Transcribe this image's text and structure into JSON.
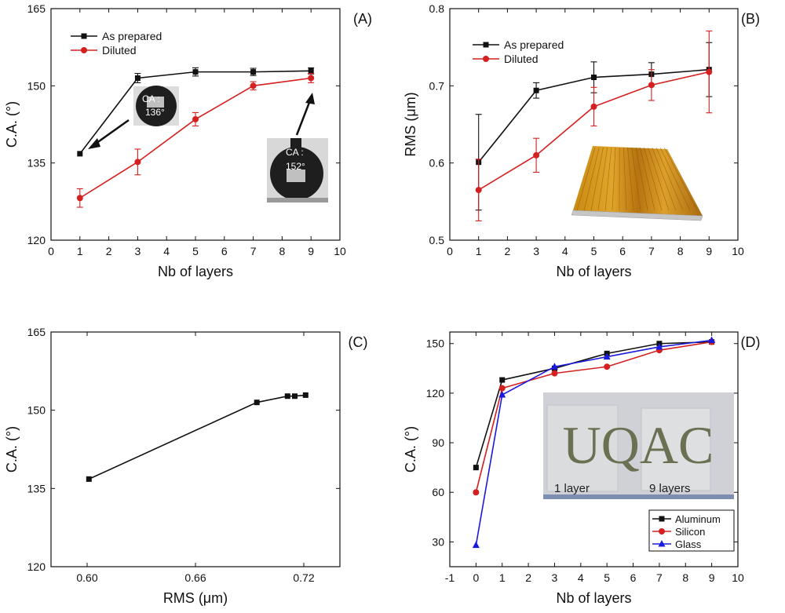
{
  "chart_data": [
    {
      "id": "A",
      "panel_label": "(A)",
      "type": "line",
      "xlabel": "Nb of layers",
      "ylabel": "C.A. (°)",
      "xlim": [
        0,
        10
      ],
      "ylim": [
        120,
        165
      ],
      "xticks": [
        "0",
        "1",
        "2",
        "3",
        "4",
        "5",
        "6",
        "7",
        "8",
        "9",
        "10"
      ],
      "yticks": [
        "120",
        "135",
        "150",
        "165"
      ],
      "series": [
        {
          "name": "As prepared",
          "color": "#111111",
          "marker": "square",
          "x": [
            1,
            3,
            5,
            7,
            9
          ],
          "y": [
            136.8,
            151.5,
            152.7,
            152.7,
            152.9
          ],
          "err": [
            0,
            0.9,
            0.8,
            0.7,
            0.6
          ]
        },
        {
          "name": "Diluted",
          "color": "#d42020",
          "marker": "circle",
          "x": [
            1,
            3,
            5,
            7,
            9
          ],
          "y": [
            128.2,
            135.2,
            143.5,
            150,
            151.5
          ],
          "err": [
            1.8,
            2.5,
            1.3,
            0.8,
            0.9
          ]
        }
      ],
      "legend": "top-left",
      "insets": [
        {
          "name": "droplet-136",
          "label": "CA :",
          "value": "136°"
        },
        {
          "name": "droplet-152",
          "label": "CA :",
          "value": "152°"
        }
      ]
    },
    {
      "id": "B",
      "panel_label": "(B)",
      "type": "line",
      "xlabel": "Nb of layers",
      "ylabel": "RMS (μm)",
      "xlim": [
        0,
        10
      ],
      "ylim": [
        0.5,
        0.8
      ],
      "xticks": [
        "0",
        "1",
        "2",
        "3",
        "4",
        "5",
        "6",
        "7",
        "8",
        "9",
        "10"
      ],
      "yticks": [
        "0.5",
        "0.6",
        "0.7",
        "0.8"
      ],
      "series": [
        {
          "name": "As prepared",
          "color": "#111111",
          "marker": "square",
          "x": [
            1,
            3,
            5,
            7,
            9
          ],
          "y": [
            0.601,
            0.694,
            0.711,
            0.715,
            0.721
          ],
          "err": [
            0.062,
            0.01,
            0.02,
            0.015,
            0.035
          ]
        },
        {
          "name": "Diluted",
          "color": "#d42020",
          "marker": "circle",
          "x": [
            1,
            3,
            5,
            7,
            9
          ],
          "y": [
            0.565,
            0.61,
            0.673,
            0.701,
            0.718
          ],
          "err": [
            0.04,
            0.022,
            0.025,
            0.02,
            0.053
          ]
        }
      ],
      "legend": "top-left",
      "insets": [
        {
          "name": "afm-surface-image"
        }
      ]
    },
    {
      "id": "C",
      "panel_label": "(C)",
      "type": "line",
      "xlabel": "RMS (μm)",
      "ylabel": "C.A. (°)",
      "xlim": [
        0.58,
        0.74
      ],
      "ylim": [
        120,
        165
      ],
      "xticks": [
        "0.60",
        "0.66",
        "0.72"
      ],
      "yticks": [
        "120",
        "135",
        "150",
        "165"
      ],
      "series": [
        {
          "name": "As prepared",
          "color": "#111111",
          "marker": "square",
          "x": [
            0.601,
            0.694,
            0.711,
            0.715,
            0.721
          ],
          "y": [
            136.8,
            151.5,
            152.7,
            152.7,
            152.9
          ]
        }
      ]
    },
    {
      "id": "D",
      "panel_label": "(D)",
      "type": "line",
      "xlabel": "Nb of layers",
      "ylabel": "C.A. (°)",
      "xlim": [
        -1,
        10
      ],
      "ylim": [
        15,
        157
      ],
      "xticks": [
        "-1",
        "0",
        "1",
        "2",
        "3",
        "4",
        "5",
        "6",
        "7",
        "8",
        "9",
        "10"
      ],
      "yticks": [
        "30",
        "60",
        "90",
        "120",
        "150"
      ],
      "series": [
        {
          "name": "Aluminum",
          "color": "#111111",
          "marker": "square",
          "x": [
            0,
            1,
            3,
            5,
            7,
            9
          ],
          "y": [
            75,
            128,
            135,
            144,
            150,
            151
          ]
        },
        {
          "name": "Silicon",
          "color": "#d42020",
          "marker": "circle",
          "x": [
            0,
            1,
            3,
            5,
            7,
            9
          ],
          "y": [
            60,
            123,
            132,
            136,
            146,
            151
          ]
        },
        {
          "name": "Glass",
          "color": "#1a1adc",
          "marker": "triangle",
          "x": [
            0,
            1,
            3,
            5,
            7,
            9
          ],
          "y": [
            28,
            119,
            136,
            142,
            148,
            152
          ]
        }
      ],
      "legend": "bottom-right",
      "insets": [
        {
          "name": "uqac-photo",
          "big_text": "UQAC",
          "caption_left": "1 layer",
          "caption_right": "9 layers"
        }
      ]
    }
  ]
}
